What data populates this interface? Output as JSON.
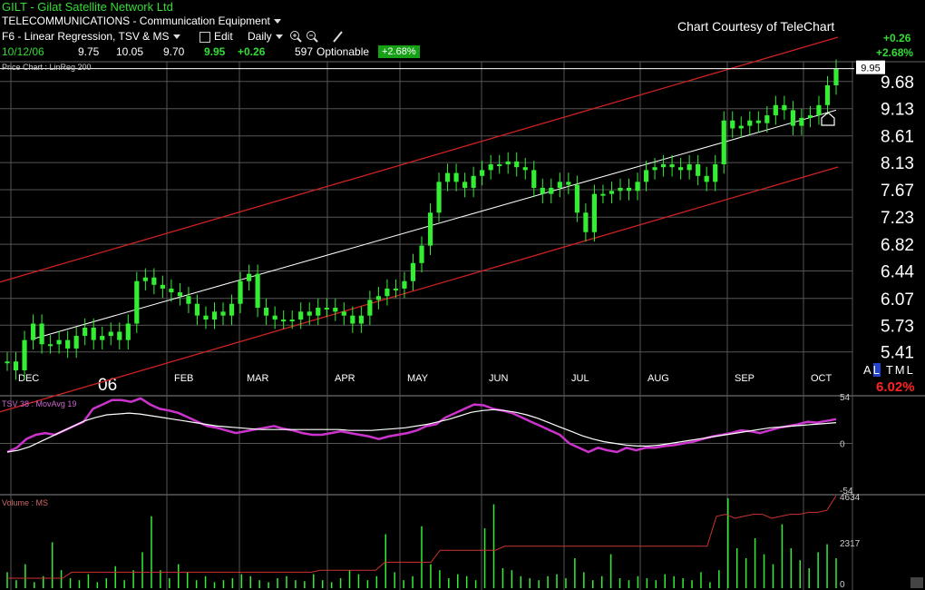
{
  "header": {
    "symbol_title": "GILT - Gilat Satellite Network Ltd",
    "industry": "TELECOMMUNICATIONS - Communication Equipment",
    "setup": "F6 - Linear Regression, TSV & MS",
    "edit_label": "Edit",
    "period_label": "Daily",
    "courtesy": "Chart Courtesy of TeleChart",
    "quote": {
      "date": "10/12/06",
      "open": "9.75",
      "high": "10.05",
      "low": "9.70",
      "close": "9.95",
      "change": "+0.26",
      "volume": "597",
      "optionable": "Optionable",
      "pct_badge": "+2.68%"
    },
    "right_change": "+0.26",
    "right_pct": "+2.68%",
    "scale_modes": [
      "A",
      "L",
      "T",
      "M",
      "L"
    ],
    "bottom_pct": "6.02%",
    "price_label_box": "9.95"
  },
  "colors": {
    "up": "#33ee33",
    "regression_channel": "#cc2222",
    "regression_mid": "#ffffff",
    "tsv": "#cc33cc",
    "volume_ma": "#cc3333",
    "grid": "#555555"
  },
  "chart_data": [
    {
      "type": "candlestick",
      "panel_label": "Price Chart : LinReg 200",
      "y_ticks": [
        "9.68",
        "9.13",
        "8.61",
        "8.13",
        "7.67",
        "7.23",
        "6.82",
        "6.44",
        "6.07",
        "5.73",
        "5.41"
      ],
      "x_ticks": [
        "DEC",
        "06",
        "FEB",
        "MAR",
        "APR",
        "MAY",
        "JUN",
        "JUL",
        "AUG",
        "SEP",
        "OCT"
      ],
      "ylim": [
        5.2,
        10.1
      ],
      "log_scale": true,
      "last_close": 9.95,
      "close_series": [
        5.3,
        5.2,
        5.55,
        5.75,
        5.5,
        5.5,
        5.55,
        5.45,
        5.6,
        5.7,
        5.55,
        5.6,
        5.65,
        5.55,
        5.75,
        6.3,
        6.35,
        6.25,
        6.2,
        6.15,
        6.1,
        6.0,
        5.85,
        5.8,
        5.9,
        5.85,
        6.0,
        6.3,
        6.4,
        5.95,
        5.85,
        5.8,
        5.8,
        5.8,
        5.9,
        5.85,
        5.95,
        5.95,
        5.9,
        5.85,
        5.75,
        5.85,
        6.05,
        6.1,
        6.2,
        6.2,
        6.3,
        6.55,
        6.8,
        7.3,
        7.8,
        7.95,
        7.8,
        7.7,
        7.9,
        8.0,
        8.1,
        8.1,
        8.15,
        8.05,
        8.0,
        7.7,
        7.6,
        7.7,
        7.8,
        7.75,
        7.3,
        7.0,
        7.6,
        7.6,
        7.65,
        7.7,
        7.65,
        7.8,
        8.0,
        8.05,
        8.1,
        8.05,
        8.0,
        8.1,
        7.9,
        7.8,
        8.1,
        8.9,
        8.75,
        8.8,
        8.9,
        8.85,
        9.0,
        9.2,
        9.1,
        8.8,
        8.95,
        9.0,
        9.2,
        9.6,
        9.95
      ],
      "regression": {
        "start": [
          0,
          5.45
        ],
        "end": [
          96,
          9.1
        ],
        "channel_offset": 1.0
      }
    },
    {
      "type": "line",
      "panel_label": "TSV 38 : MovAvg 19",
      "y_ticks": [
        "54",
        "0",
        "-54"
      ],
      "ylim": [
        -54,
        54
      ],
      "series": [
        {
          "name": "TSV 38",
          "values": [
            -10,
            -5,
            5,
            10,
            12,
            10,
            15,
            20,
            25,
            40,
            45,
            50,
            50,
            48,
            52,
            45,
            40,
            38,
            35,
            30,
            25,
            20,
            18,
            15,
            12,
            14,
            16,
            18,
            20,
            17,
            15,
            12,
            10,
            10,
            12,
            14,
            12,
            10,
            8,
            5,
            8,
            10,
            12,
            15,
            20,
            22,
            30,
            35,
            40,
            45,
            44,
            40,
            38,
            35,
            30,
            25,
            20,
            15,
            10,
            0,
            -5,
            -10,
            -5,
            -8,
            -10,
            -5,
            -8,
            -5,
            -5,
            -3,
            -2,
            0,
            2,
            5,
            8,
            10,
            12,
            15,
            14,
            12,
            15,
            18,
            20,
            22,
            25,
            24,
            26,
            28
          ],
          "color": "#cc33cc"
        },
        {
          "name": "MovAvg 19",
          "values": [
            -10,
            -8,
            -4,
            2,
            8,
            14,
            20,
            26,
            30,
            33,
            34,
            35,
            34,
            32,
            30,
            28,
            26,
            24,
            22,
            20,
            19,
            18,
            17,
            16,
            16,
            16,
            16,
            16,
            16,
            16,
            16,
            15,
            15,
            15,
            16,
            17,
            18,
            20,
            22,
            25,
            28,
            32,
            36,
            38,
            39,
            38,
            36,
            33,
            29,
            24,
            19,
            14,
            9,
            5,
            2,
            0,
            -2,
            -3,
            -3,
            -2,
            0,
            2,
            4,
            6,
            8,
            10,
            12,
            14,
            16,
            18,
            19,
            20,
            21,
            22,
            23,
            24
          ],
          "color": "#ffffff"
        }
      ]
    },
    {
      "type": "bar",
      "panel_label": "Volume : MS",
      "y_ticks": [
        "4634",
        "2317",
        "0"
      ],
      "ylim": [
        0,
        4634
      ],
      "series": [
        {
          "name": "Volume",
          "values": [
            800,
            400,
            1200,
            300,
            600,
            2300,
            900,
            500,
            400,
            700,
            300,
            500,
            1100,
            400,
            900,
            1800,
            3600,
            900,
            500,
            1200,
            800,
            400,
            600,
            300,
            400,
            500,
            700,
            600,
            400,
            300,
            500,
            600,
            400,
            350,
            700,
            400,
            300,
            500,
            900,
            700,
            400,
            600,
            2700,
            800,
            400,
            600,
            3100,
            1200,
            900,
            500,
            700,
            600,
            400,
            3000,
            4200,
            1000,
            900,
            600,
            500,
            400,
            600,
            700,
            500,
            1500,
            800,
            400,
            600,
            1700,
            500,
            400,
            600,
            500,
            400,
            700,
            600,
            500,
            400,
            800,
            300,
            900,
            4500,
            2000,
            1500,
            2500,
            1700,
            1200,
            3200,
            2000,
            1400,
            1000,
            1800,
            2200,
            1500
          ]
        },
        {
          "name": "MS",
          "values": [
            500,
            500,
            500,
            500,
            500,
            500,
            500,
            800,
            800,
            800,
            800,
            800,
            800,
            800,
            800,
            800,
            800,
            800,
            800,
            800,
            800,
            800,
            800,
            800,
            800,
            800,
            800,
            800,
            800,
            800,
            800,
            800,
            800,
            800,
            900,
            900,
            900,
            900,
            900,
            900,
            900,
            1300,
            1300,
            1300,
            1300,
            1300,
            1300,
            1900,
            1900,
            1900,
            1900,
            1900,
            1900,
            1900,
            2100,
            2100,
            2100,
            2100,
            2100,
            2100,
            2100,
            2100,
            2100,
            2100,
            2100,
            2100,
            2100,
            2100,
            2100,
            2100,
            2100,
            2100,
            2100,
            2100,
            2100,
            2100,
            2100,
            3600,
            3700,
            3500,
            3600,
            3700,
            3700,
            3500,
            3600,
            3700,
            3700,
            3800,
            3800,
            3900,
            4634
          ]
        }
      ]
    }
  ]
}
